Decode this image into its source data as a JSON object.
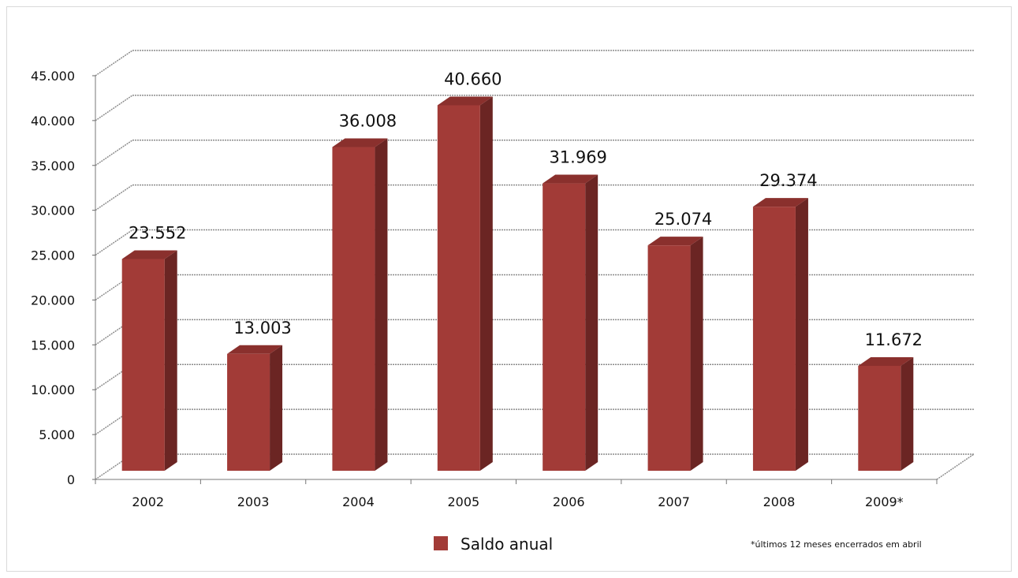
{
  "chart_data": {
    "type": "bar",
    "categories": [
      "2002",
      "2003",
      "2004",
      "2005",
      "2006",
      "2007",
      "2008",
      "2009*"
    ],
    "series": [
      {
        "name": "Saldo anual",
        "values": [
          23552,
          13003,
          36008,
          40660,
          31969,
          25074,
          29374,
          11672
        ],
        "labels": [
          "23.552",
          "13.003",
          "36.008",
          "40.660",
          "31.969",
          "25.074",
          "29.374",
          "11.672"
        ]
      }
    ],
    "ylim": [
      0,
      45000
    ],
    "yticks": [
      0,
      5000,
      10000,
      15000,
      20000,
      25000,
      30000,
      35000,
      40000,
      45000
    ],
    "ytick_labels": [
      "0",
      "5.000",
      "10.000",
      "15.000",
      "20.000",
      "25.000",
      "30.000",
      "35.000",
      "40.000",
      "45.000"
    ],
    "grid": true,
    "style": "3d-column",
    "legend_position": "bottom",
    "colors": {
      "bar_front": "#A23B37",
      "bar_side": "#6B2523",
      "bar_top": "#8A302D",
      "grid": "#8c8c8c"
    }
  },
  "footnote": "*últimos  12 meses encerrados em abril"
}
